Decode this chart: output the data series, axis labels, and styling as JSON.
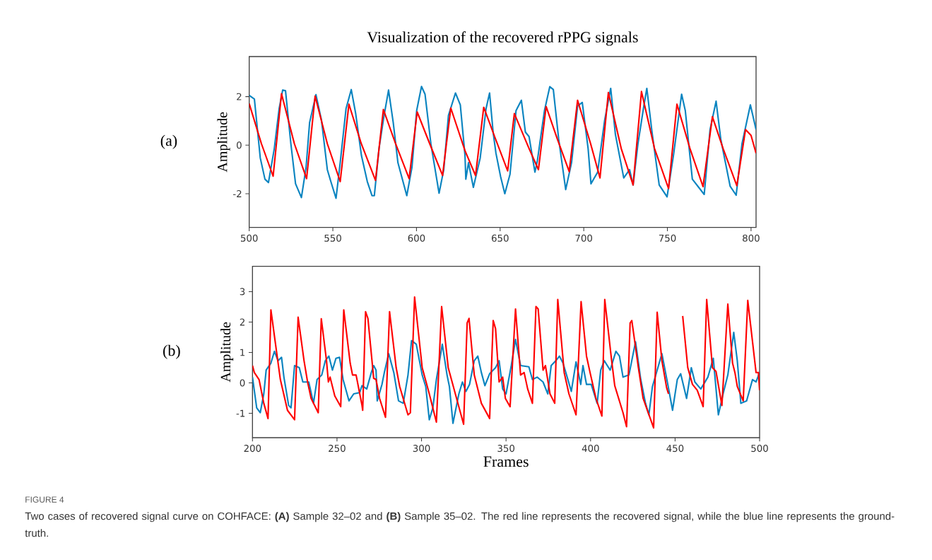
{
  "chart_data": [
    {
      "type": "line",
      "title": "Visualization of the recovered rPPG signals",
      "ylabel": "Amplitude",
      "annotations": [
        "(a)"
      ],
      "xlim": [
        500,
        803
      ],
      "ylim": [
        -3.39,
        3.65
      ],
      "xticks": [
        500,
        550,
        600,
        650,
        700,
        750,
        800
      ],
      "yticks": [
        -2,
        0,
        2
      ],
      "series": [
        {
          "color": "#0a84c0",
          "x": [
            500,
            503.1,
            506.6,
            509.4,
            511.5,
            515,
            517.9,
            520,
            521.7,
            524.9,
            527.7,
            531.2,
            534,
            536.1,
            539.9,
            543.2,
            546.7,
            548.8,
            551.9,
            554.4,
            557.9,
            561,
            563.6,
            567.1,
            570.6,
            573.4,
            574.8,
            577.6,
            580.4,
            583.3,
            586.1,
            588.9,
            594.2,
            597.3,
            600.1,
            603,
            605.1,
            608.6,
            611.4,
            613.5,
            616.3,
            619.1,
            623.3,
            626.2,
            629,
            629.5,
            631.1,
            634,
            638.1,
            641.6,
            643.7,
            645.8,
            647.5,
            650.3,
            652.8,
            655.9,
            659.5,
            662.7,
            665.1,
            667.3,
            670.8,
            672.2,
            676.5,
            679.7,
            681.8,
            685,
            689.2,
            692.7,
            696.3,
            699.1,
            702.6,
            704.3,
            708.3,
            712.5,
            716.1,
            718.9,
            723.9,
            727.4,
            729.5,
            732.4,
            735.9,
            737.7,
            740.8,
            745.1,
            749.8,
            753.6,
            758.5,
            760.7,
            764.9,
            772,
            775.5,
            779.1,
            781.9,
            787.5,
            791.1,
            794.6,
            799.6,
            803
          ],
          "values": [
            2.05,
            1.9,
            -0.52,
            -1.4,
            -1.54,
            -0.14,
            1.51,
            2.27,
            2.24,
            0.06,
            -1.59,
            -2.16,
            -0.91,
            0.93,
            2.08,
            1.03,
            -1.01,
            -1.5,
            -2.19,
            -0.72,
            1.51,
            2.29,
            1.32,
            -0.43,
            -1.5,
            -2.08,
            -2.08,
            -0.14,
            1.13,
            2.27,
            0.93,
            -0.72,
            -2.08,
            -0.91,
            1.42,
            2.42,
            2.1,
            0.06,
            -1.11,
            -1.98,
            -1.01,
            1.22,
            2.15,
            1.66,
            -0.43,
            -1.4,
            -0.72,
            -1.74,
            -0.52,
            1.51,
            2.15,
            0.54,
            -0.33,
            -1.3,
            -2.0,
            -1.2,
            1.42,
            1.85,
            0.54,
            0.35,
            -1.11,
            -0.67,
            1.42,
            2.41,
            2.29,
            0.25,
            -1.83,
            -0.72,
            1.61,
            1.76,
            -0.14,
            -1.59,
            -1.11,
            1.03,
            2.34,
            0.45,
            -1.35,
            -1.01,
            -1.64,
            0.06,
            1.61,
            2.34,
            0.54,
            -1.64,
            -2.13,
            -0.43,
            2.1,
            1.42,
            -1.4,
            -2.03,
            0.64,
            1.81,
            0.25,
            -1.69,
            -2.06,
            0.06,
            1.66,
            0.64
          ]
        },
        {
          "color": "#ff0000",
          "x": [
            500,
            507.3,
            514.3,
            519.3,
            527,
            534.3,
            539.4,
            546.7,
            554.4,
            559.6,
            567,
            575.5,
            580.2,
            587.5,
            595.6,
            600.4,
            607.9,
            615.6,
            620.5,
            629,
            635.3,
            640.2,
            647,
            654.5,
            658.5,
            667.3,
            672.9,
            677.5,
            684.2,
            691.3,
            696.3,
            704.1,
            709.7,
            714.7,
            722.4,
            729.5,
            734.5,
            742.3,
            750.7,
            755.7,
            763.5,
            771.3,
            776.9,
            783.3,
            791.5,
            796.7,
            800,
            803
          ],
          "values": [
            1.71,
            0.06,
            -1.28,
            2.12,
            0.06,
            -1.38,
            2.02,
            0.06,
            -1.5,
            1.69,
            0.06,
            -1.45,
            1.47,
            0.06,
            -1.38,
            1.37,
            0.06,
            -1.25,
            1.53,
            -0.23,
            -1.25,
            1.56,
            0.3,
            -1.06,
            1.3,
            -0.14,
            -1.01,
            1.59,
            0.25,
            -1.09,
            1.85,
            0.06,
            -1.35,
            2.17,
            -0.14,
            -1.64,
            2.21,
            -0.14,
            -1.79,
            1.69,
            -0.14,
            -1.71,
            1.17,
            -0.14,
            -1.67,
            0.64,
            0.4,
            -0.33
          ]
        }
      ]
    },
    {
      "type": "line",
      "xlabel": "Frames",
      "ylabel": "Amplitude",
      "annotations": [
        "(b)",
        "FIGURE 4",
        "Two cases of recovered signal curve on COHFACE: **(A)** Sample 32–02 and **(B)** Sample 35–02. The red line represents the recovered signal, while the blue line represents the ground-truth."
      ],
      "xlim": [
        200,
        500
      ],
      "ylim": [
        -1.8,
        3.83
      ],
      "xticks": [
        200,
        250,
        300,
        350,
        400,
        450,
        500
      ],
      "yticks": [
        -1,
        0,
        1,
        2,
        3
      ],
      "series": [
        {
          "color": "#0a84c0",
          "x": [
            200,
            202.5,
            204.6,
            206.7,
            208.1,
            210.9,
            213,
            215.1,
            217.2,
            218.6,
            221.4,
            222.8,
            224.9,
            227.7,
            229.8,
            233.3,
            236.1,
            238.2,
            241,
            243.1,
            245.2,
            247.3,
            249.4,
            251.5,
            253.6,
            257.1,
            259.9,
            263.4,
            264.8,
            267.6,
            270.3,
            271.7,
            273.1,
            273.8,
            276.6,
            278,
            280.6,
            283.6,
            286.4,
            289.2,
            292,
            294.1,
            296.9,
            300.4,
            302.5,
            304.6,
            306.7,
            308.8,
            312.3,
            315.1,
            316.5,
            318.6,
            322.1,
            324.2,
            326.3,
            328.4,
            331.2,
            333.3,
            335.4,
            337.5,
            340.3,
            343.8,
            345.9,
            348,
            350,
            353.1,
            355.6,
            358.6,
            363.5,
            365.6,
            368.4,
            371.9,
            374.7,
            376.7,
            379.5,
            381.6,
            383.7,
            385.8,
            388.6,
            391.4,
            394.2,
            395.5,
            397.6,
            400.4,
            403.9,
            406,
            408.1,
            411.6,
            415,
            417.1,
            419.2,
            422.7,
            426.6,
            429.7,
            432.5,
            434.5,
            436.6,
            442.2,
            445.7,
            448.5,
            451.3,
            453.3,
            456.8,
            459.6,
            461.7,
            465.2,
            469.4,
            472.6,
            475.6,
            478.4,
            481.2,
            484.7,
            486.8,
            488.9,
            492.3,
            495.8,
            497.9,
            500
          ],
          "values": [
            0.19,
            -0.82,
            -0.98,
            -0.36,
            0.42,
            0.65,
            1.04,
            0.73,
            0.84,
            0.19,
            -0.74,
            -0.82,
            0.57,
            0.5,
            0.03,
            0.03,
            -0.67,
            0.11,
            0.26,
            0.73,
            0.88,
            0.42,
            0.81,
            0.84,
            0.11,
            -0.59,
            -0.36,
            -0.32,
            -0.09,
            -0.2,
            0.34,
            0.57,
            0.42,
            -0.59,
            -0.05,
            0.34,
            0.96,
            0.34,
            -0.59,
            -0.67,
            0.26,
            1.39,
            1.27,
            0.26,
            -0.12,
            -1.21,
            -0.82,
            0.11,
            1.27,
            0.26,
            -0.12,
            -1.33,
            -0.36,
            0.03,
            -0.28,
            -0.05,
            0.73,
            0.88,
            0.34,
            -0.09,
            0.3,
            0.5,
            0.73,
            -0.2,
            -0.36,
            0.57,
            1.43,
            0.57,
            0.53,
            0.11,
            0.19,
            0.03,
            -0.36,
            0.57,
            0.73,
            0.88,
            0.65,
            0.26,
            -0.28,
            0.69,
            -0.05,
            0.57,
            -0.05,
            -0.05,
            -0.67,
            0.42,
            0.73,
            0.42,
            1.04,
            0.88,
            0.19,
            0.26,
            1.35,
            0.11,
            -0.67,
            -1.05,
            -0.12,
            0.96,
            -0.05,
            -0.9,
            0.11,
            0.3,
            -0.51,
            0.5,
            0.03,
            -0.2,
            0.19,
            0.81,
            -1.05,
            -0.36,
            0.26,
            1.66,
            0.73,
            -0.67,
            -0.59,
            0.11,
            0.03,
            0.34
          ]
        },
        {
          "color": "#ff0000",
          "x": [
            200,
            201.1,
            203.9,
            206.7,
            209.2,
            210.9,
            214.4,
            216.5,
            220.7,
            224.9,
            227,
            230.5,
            232.6,
            234.7,
            238.9,
            240.7,
            243.8,
            244.9,
            245.9,
            248.7,
            252.2,
            254,
            257.8,
            259.2,
            261.3,
            264.8,
            265.2,
            266.9,
            268.3,
            271.7,
            273.1,
            275.2,
            278.7,
            281.1,
            285,
            287.1,
            292,
            293.4,
            295.9,
            300.4,
            304.6,
            308.8,
            311.9,
            315.8,
            320,
            324.9,
            327,
            328.1,
            331.2,
            335.4,
            340.3,
            342.4,
            343.8,
            345.9,
            348,
            349.6,
            352.4,
            355.6,
            358.6,
            360.7,
            362.8,
            365.6,
            367.7,
            369,
            371.9,
            373.3,
            376,
            378.8,
            380.6,
            384.4,
            387.2,
            391.4,
            394.4,
            397.6,
            399.7,
            403.2,
            406.7,
            408.4,
            412.3,
            414.3,
            419.2,
            421.3,
            423.4,
            424.4,
            428.3,
            431.1,
            437.3,
            439.4,
            442.2,
            445,
            446.1,
            448.5,
            452,
            454.5,
            457.5,
            460.3,
            463.1,
            466.6,
            468.7,
            472.1,
            474.2,
            477.7,
            481.2,
            484,
            485.4,
            486.8,
            490.3,
            493,
            497.9,
            499.3,
            500
          ],
          "values": [
            0.57,
            0.34,
            0.11,
            -0.67,
            -1.17,
            2.4,
            0.96,
            0.11,
            -0.9,
            -1.21,
            2.16,
            0.73,
            0.03,
            -0.51,
            -0.98,
            2.11,
            0.73,
            0.03,
            0.19,
            -0.43,
            -0.78,
            2.4,
            0.65,
            0.26,
            0.26,
            -0.74,
            -0.9,
            2.34,
            2.12,
            0.15,
            0.11,
            -0.51,
            -1.13,
            2.34,
            0.5,
            -0.12,
            -1.05,
            -0.98,
            2.82,
            0.5,
            -0.36,
            -1.29,
            2.51,
            0.5,
            -0.36,
            -1.36,
            1.97,
            2.12,
            0.26,
            -0.67,
            -1.17,
            2.05,
            1.78,
            0.03,
            0.19,
            -0.51,
            -0.78,
            2.43,
            0.26,
            0.34,
            -0.2,
            -0.67,
            2.51,
            2.43,
            0.42,
            0.57,
            -0.36,
            -0.67,
            2.74,
            0.34,
            -0.36,
            -1.05,
            2.67,
            0.88,
            0.34,
            -0.51,
            -1.09,
            2.74,
            0.81,
            -0.09,
            -0.98,
            -1.44,
            1.97,
            2.05,
            0.5,
            -0.51,
            -1.48,
            2.32,
            0.73,
            -0.16,
            -0.36,
            null,
            null,
            2.2,
            0.5,
            -0.05,
            -0.24,
            -0.78,
            2.74,
            0.5,
            0.38,
            -0.74,
            2.59,
            0.65,
            0.34,
            -0.12,
            -0.59,
            2.71,
            0.34,
            0.34,
            -0.24
          ]
        }
      ]
    }
  ]
}
